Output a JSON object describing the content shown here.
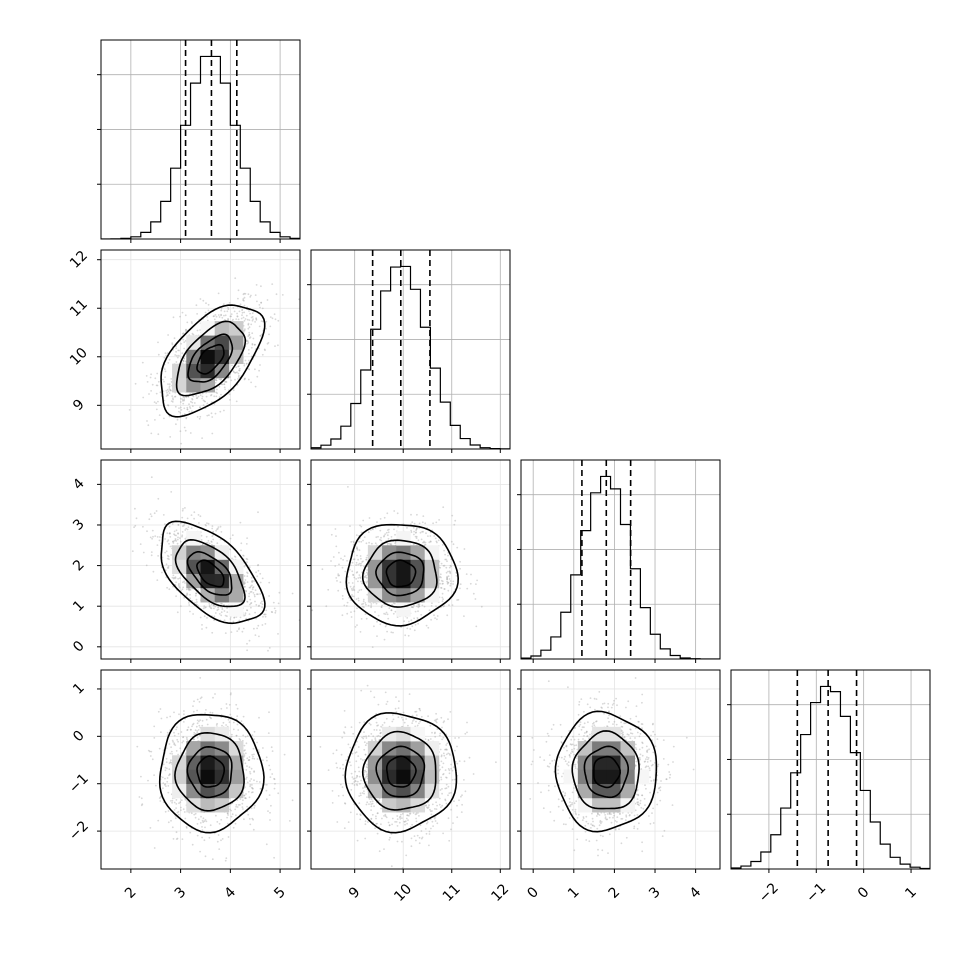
{
  "chart_data": {
    "type": "corner",
    "title": "",
    "parameters": [
      {
        "index": 0,
        "range": [
          1.4,
          5.4
        ],
        "ticks": [
          2,
          3,
          4,
          5
        ],
        "tick_labels": [
          "2",
          "3",
          "4",
          "5"
        ],
        "mean": 3.6,
        "sd": 0.5,
        "quantiles": [
          3.1,
          3.62,
          4.13
        ]
      },
      {
        "index": 1,
        "range": [
          8.1,
          12.2
        ],
        "ticks": [
          9,
          10,
          11,
          12
        ],
        "tick_labels": [
          "9",
          "10",
          "11",
          "12"
        ],
        "mean": 9.95,
        "sd": 0.55,
        "quantiles": [
          9.37,
          9.95,
          10.55
        ]
      },
      {
        "index": 2,
        "range": [
          -0.3,
          4.6
        ],
        "ticks": [
          0,
          1,
          2,
          3,
          4
        ],
        "tick_labels": [
          "0",
          "1",
          "2",
          "3",
          "4"
        ],
        "mean": 1.8,
        "sd": 0.6,
        "quantiles": [
          1.2,
          1.8,
          2.4
        ]
      },
      {
        "index": 3,
        "range": [
          -2.8,
          1.4
        ],
        "ticks": [
          -2,
          -1,
          0,
          1
        ],
        "tick_labels": [
          "−2",
          "−1",
          "0",
          "1"
        ],
        "mean": -0.75,
        "sd": 0.6,
        "quantiles": [
          -1.4,
          -0.75,
          -0.15
        ]
      }
    ],
    "correlations": [
      {
        "x": 0,
        "y": 1,
        "rho": 0.55
      },
      {
        "x": 0,
        "y": 2,
        "rho": -0.55
      },
      {
        "x": 1,
        "y": 2,
        "rho": 0.0
      },
      {
        "x": 0,
        "y": 3,
        "rho": 0.0
      },
      {
        "x": 1,
        "y": 3,
        "rho": 0.0
      },
      {
        "x": 2,
        "y": 3,
        "rho": 0.0
      }
    ],
    "contour_levels_sigma": [
      0.5,
      1.0,
      1.5,
      2.0
    ],
    "grid": true,
    "histogram_bins": 20
  }
}
